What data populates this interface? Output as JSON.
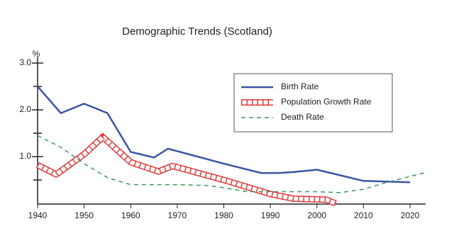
{
  "chart_data": {
    "type": "line",
    "title": "Demographic Trends (Scotland)",
    "y_label": "%",
    "xlim": [
      1940,
      2023
    ],
    "xticks": [
      1940,
      1950,
      1960,
      1970,
      1980,
      1990,
      2000,
      2010,
      2020
    ],
    "ylim": [
      0,
      3
    ],
    "yticks": [
      {
        "value": 1,
        "label": "1.0"
      },
      {
        "value": 2,
        "label": "2.0"
      },
      {
        "value": 3,
        "label": "3.0"
      }
    ],
    "yminorticks": [
      0.5,
      1.5,
      2.5
    ],
    "legend": "upper right",
    "series": [
      {
        "name": "Birth Rate",
        "color": "#3a55a4",
        "style": "solid",
        "x": [
          1940,
          1945,
          1950,
          1955,
          1960,
          1965,
          1968,
          1980,
          1988,
          1992,
          1995,
          2000,
          2005,
          2010,
          2020
        ],
        "values": [
          2.5,
          1.93,
          2.13,
          1.93,
          1.1,
          0.98,
          1.17,
          0.85,
          0.65,
          0.65,
          0.67,
          0.72,
          0.6,
          0.48,
          0.45
        ]
      },
      {
        "name": "Population Growth Rate",
        "color": "#e03a3a",
        "style": "hatched",
        "x": [
          1940,
          1944,
          1950,
          1954,
          1960,
          1966,
          1969,
          1980,
          1990,
          1995,
          2002,
          2004
        ],
        "values": [
          0.82,
          0.62,
          1.05,
          1.42,
          0.88,
          0.68,
          0.8,
          0.5,
          0.2,
          0.1,
          0.08,
          0
        ]
      },
      {
        "name": "Death Rate",
        "color": "#3a9a5a",
        "style": "dashed",
        "x": [
          1940,
          1945,
          1950,
          1955,
          1960,
          1970,
          1977,
          1985,
          1990,
          2000,
          2005,
          2010,
          2015,
          2023
        ],
        "values": [
          1.45,
          1.2,
          0.85,
          0.55,
          0.4,
          0.4,
          0.38,
          0.25,
          0.25,
          0.25,
          0.23,
          0.3,
          0.45,
          0.65
        ]
      }
    ]
  }
}
